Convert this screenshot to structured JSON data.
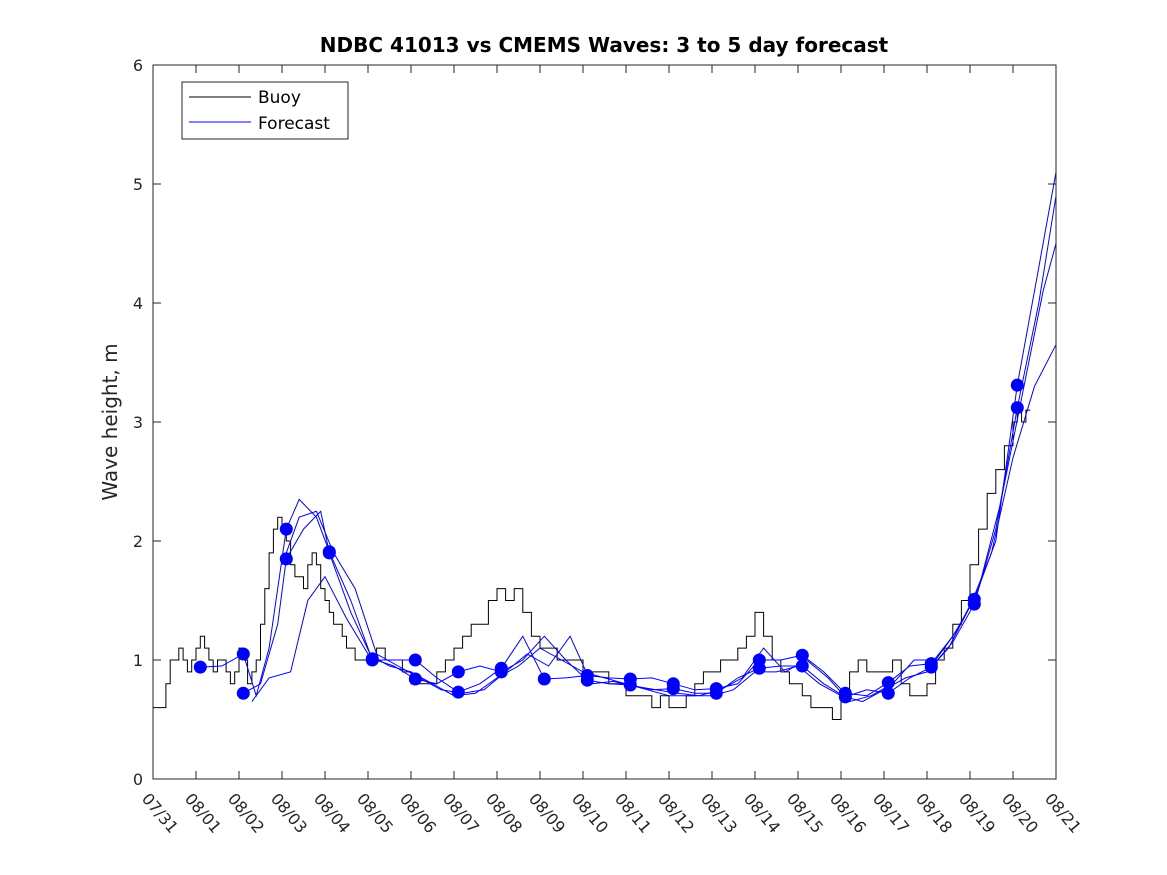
{
  "chart_data": {
    "type": "line",
    "title": "NDBC 41013 vs CMEMS Waves: 3 to 5 day forecast",
    "xlabel": "",
    "ylabel": "Wave height, m",
    "xlim": [
      0,
      21
    ],
    "ylim": [
      0,
      6
    ],
    "yticks": [
      0,
      1,
      2,
      3,
      4,
      5,
      6
    ],
    "xtick_labels": [
      "07/31",
      "08/01",
      "08/02",
      "08/03",
      "08/04",
      "08/05",
      "08/06",
      "08/07",
      "08/08",
      "08/09",
      "08/10",
      "08/11",
      "08/12",
      "08/13",
      "08/14",
      "08/15",
      "08/16",
      "08/17",
      "08/18",
      "08/19",
      "08/20",
      "08/21"
    ],
    "legend": {
      "placement": "top-left",
      "entries": [
        {
          "name": "Buoy",
          "color": "#000000"
        },
        {
          "name": "Forecast",
          "color": "#0000ff"
        }
      ]
    },
    "colors": {
      "buoy": "#000000",
      "forecast": "#0000ff",
      "axis": "#262626"
    },
    "buoy": {
      "name": "Buoy",
      "x": [
        0,
        0.2,
        0.3,
        0.4,
        0.5,
        0.6,
        0.7,
        0.8,
        0.9,
        1.0,
        1.1,
        1.2,
        1.3,
        1.4,
        1.5,
        1.6,
        1.7,
        1.8,
        1.9,
        2.0,
        2.1,
        2.2,
        2.3,
        2.4,
        2.5,
        2.6,
        2.7,
        2.8,
        2.9,
        3.0,
        3.1,
        3.2,
        3.3,
        3.4,
        3.5,
        3.6,
        3.7,
        3.8,
        3.9,
        4.0,
        4.1,
        4.2,
        4.3,
        4.4,
        4.5,
        4.6,
        4.7,
        4.8,
        4.9,
        5.0,
        5.2,
        5.4,
        5.6,
        5.8,
        6.0,
        6.2,
        6.4,
        6.6,
        6.8,
        7.0,
        7.2,
        7.4,
        7.6,
        7.8,
        8.0,
        8.2,
        8.4,
        8.6,
        8.8,
        9.0,
        9.2,
        9.4,
        9.6,
        9.8,
        10.0,
        10.2,
        10.4,
        10.6,
        10.8,
        11.0,
        11.2,
        11.4,
        11.6,
        11.8,
        12.0,
        12.2,
        12.4,
        12.6,
        12.8,
        13.0,
        13.2,
        13.4,
        13.6,
        13.8,
        14.0,
        14.2,
        14.4,
        14.6,
        14.8,
        15.0,
        15.1,
        15.2,
        15.3,
        15.4,
        15.6,
        15.8,
        16.0,
        16.2,
        16.4,
        16.6,
        16.8,
        17.0,
        17.2,
        17.4,
        17.6,
        17.8,
        18.0,
        18.2,
        18.4,
        18.6,
        18.8,
        19.0,
        19.2,
        19.4,
        19.6,
        19.8,
        20.0,
        20.1,
        20.2,
        20.3
      ],
      "values": [
        0.6,
        0.6,
        0.8,
        1.0,
        1.0,
        1.1,
        1.0,
        0.9,
        1.0,
        1.1,
        1.2,
        1.1,
        1.0,
        0.9,
        1.0,
        1.0,
        0.9,
        0.8,
        0.9,
        1.1,
        1.0,
        0.8,
        0.9,
        1.0,
        1.3,
        1.6,
        1.9,
        2.1,
        2.2,
        2.1,
        2.0,
        1.8,
        1.7,
        1.7,
        1.6,
        1.8,
        1.9,
        1.8,
        1.6,
        1.5,
        1.4,
        1.3,
        1.3,
        1.2,
        1.1,
        1.1,
        1.0,
        1.0,
        1.0,
        1.0,
        1.1,
        1.0,
        1.0,
        0.9,
        0.8,
        0.8,
        0.8,
        0.9,
        1.0,
        1.1,
        1.2,
        1.3,
        1.3,
        1.5,
        1.6,
        1.5,
        1.6,
        1.4,
        1.2,
        1.1,
        1.1,
        1.0,
        1.0,
        1.0,
        0.9,
        0.9,
        0.9,
        0.8,
        0.8,
        0.7,
        0.7,
        0.7,
        0.6,
        0.7,
        0.6,
        0.6,
        0.7,
        0.8,
        0.9,
        0.9,
        1.0,
        1.0,
        1.1,
        1.2,
        1.4,
        1.2,
        1.0,
        0.9,
        0.8,
        0.8,
        0.7,
        0.7,
        0.6,
        0.6,
        0.6,
        0.5,
        0.7,
        0.9,
        1.0,
        0.9,
        0.9,
        0.9,
        1.0,
        0.8,
        0.7,
        0.7,
        0.8,
        1.0,
        1.1,
        1.3,
        1.5,
        1.8,
        2.1,
        2.4,
        2.6,
        2.8,
        3.0,
        3.1,
        3.0,
        3.1
      ]
    },
    "forecast_points": {
      "name": "Forecast",
      "x": [
        1.1,
        2.1,
        2.1,
        3.1,
        3.1,
        4.1,
        4.1,
        5.1,
        5.1,
        6.1,
        6.1,
        7.1,
        7.1,
        8.1,
        8.1,
        9.1,
        10.1,
        10.1,
        11.1,
        11.1,
        12.1,
        12.1,
        13.1,
        13.1,
        14.1,
        14.1,
        15.1,
        15.1,
        16.1,
        16.1,
        17.1,
        17.1,
        18.1,
        18.1,
        19.1,
        19.1,
        20.1,
        20.1
      ],
      "values": [
        0.94,
        1.05,
        0.72,
        2.1,
        1.85,
        1.91,
        1.9,
        1.0,
        1.01,
        1.0,
        0.84,
        0.9,
        0.73,
        0.93,
        0.9,
        0.84,
        0.87,
        0.83,
        0.84,
        0.79,
        0.8,
        0.76,
        0.76,
        0.72,
        1.0,
        0.93,
        1.04,
        0.95,
        0.72,
        0.69,
        0.81,
        0.72,
        0.97,
        0.94,
        1.51,
        1.47,
        3.31,
        3.12
      ]
    },
    "forecast_series": [
      {
        "name": "Forecast",
        "x": [
          1.1,
          1.6,
          2.1,
          2.4,
          2.7,
          3.1,
          3.4,
          3.8,
          4.1,
          4.6,
          5.1,
          5.6,
          6.1,
          6.6,
          7.1,
          7.6,
          8.1,
          8.6,
          9.1,
          9.6,
          10.1,
          10.6,
          11.1,
          11.6,
          12.1,
          12.6,
          13.1,
          13.6,
          14.1,
          14.6,
          15.1,
          15.6,
          16.1,
          16.6,
          17.1,
          17.6,
          18.1,
          18.6,
          19.1,
          19.6,
          20.1,
          20.6,
          21.0
        ],
        "values": [
          0.94,
          0.95,
          1.05,
          0.7,
          1.1,
          2.1,
          2.35,
          2.2,
          1.91,
          1.5,
          1.0,
          1.0,
          1.0,
          0.85,
          0.73,
          0.8,
          0.93,
          1.2,
          0.84,
          0.85,
          0.87,
          0.85,
          0.84,
          0.85,
          0.8,
          0.75,
          0.76,
          0.8,
          1.0,
          1.0,
          1.04,
          0.9,
          0.72,
          0.7,
          0.81,
          0.95,
          0.97,
          1.2,
          1.51,
          2.0,
          3.31,
          4.3,
          5.1
        ]
      },
      {
        "name": "Forecast",
        "x": [
          2.1,
          2.5,
          2.9,
          3.1,
          3.5,
          3.9,
          4.1,
          4.6,
          5.1,
          5.6,
          6.1,
          6.6,
          7.1,
          7.6,
          8.1,
          8.6,
          9.1,
          9.6,
          10.1,
          10.6,
          11.1,
          11.6,
          12.1,
          12.6,
          13.1,
          13.6,
          14.1,
          14.6,
          15.1,
          15.6,
          16.1,
          16.6,
          17.1,
          17.6,
          18.1,
          18.6,
          19.1,
          19.6,
          20.1,
          20.6,
          21.0
        ],
        "values": [
          0.72,
          0.8,
          1.3,
          1.85,
          2.1,
          2.25,
          1.9,
          1.4,
          1.01,
          0.95,
          0.84,
          0.8,
          0.9,
          0.95,
          0.9,
          1.0,
          1.2,
          1.0,
          0.83,
          0.8,
          0.79,
          0.75,
          0.76,
          0.72,
          0.72,
          0.85,
          0.93,
          0.95,
          0.95,
          0.8,
          0.69,
          0.75,
          0.72,
          0.85,
          0.94,
          1.15,
          1.47,
          2.1,
          3.12,
          4.0,
          4.9
        ]
      },
      {
        "name": "Forecast",
        "x": [
          2.3,
          2.7,
          3.2,
          3.6,
          4.0,
          4.5,
          5.0,
          5.5,
          6.0,
          6.5,
          7.0,
          7.5,
          8.0,
          8.5,
          9.0,
          9.5,
          10.0,
          10.5,
          11.0,
          11.5,
          12.0,
          12.5,
          13.0,
          13.5,
          14.0,
          14.5,
          15.0,
          15.5,
          16.0,
          16.5,
          17.0,
          17.5,
          18.0,
          18.5,
          19.0,
          19.5,
          20.0,
          20.5,
          21.0
        ],
        "values": [
          0.65,
          0.85,
          0.9,
          1.5,
          1.7,
          1.35,
          1.05,
          0.95,
          0.9,
          0.8,
          0.7,
          0.72,
          0.85,
          0.95,
          1.1,
          1.0,
          0.9,
          0.85,
          0.8,
          0.75,
          0.7,
          0.7,
          0.7,
          0.75,
          0.9,
          0.9,
          0.95,
          0.8,
          0.7,
          0.65,
          0.75,
          0.85,
          0.9,
          1.1,
          1.45,
          1.9,
          2.7,
          3.3,
          3.65
        ]
      },
      {
        "name": "Forecast",
        "x": [
          3.0,
          3.4,
          3.8,
          4.2,
          4.7,
          5.2,
          5.7,
          6.2,
          6.7,
          7.2,
          7.7,
          8.2,
          8.7,
          9.2,
          9.7,
          10.2,
          10.7,
          11.2,
          11.7,
          12.2,
          12.7,
          13.2,
          13.7,
          14.2,
          14.7,
          15.2,
          15.7,
          16.2,
          16.7,
          17.2,
          17.7,
          18.2,
          18.7,
          19.2,
          19.7,
          20.2,
          20.7,
          21.0
        ],
        "values": [
          1.8,
          2.2,
          2.25,
          1.9,
          1.6,
          1.05,
          0.95,
          0.85,
          0.75,
          0.72,
          0.75,
          0.9,
          1.05,
          0.95,
          1.2,
          0.8,
          0.82,
          0.78,
          0.75,
          0.72,
          0.7,
          0.75,
          0.85,
          1.1,
          0.9,
          1.0,
          0.85,
          0.65,
          0.7,
          0.8,
          1.0,
          1.0,
          1.25,
          1.6,
          2.3,
          3.2,
          4.1,
          4.5
        ]
      }
    ]
  }
}
